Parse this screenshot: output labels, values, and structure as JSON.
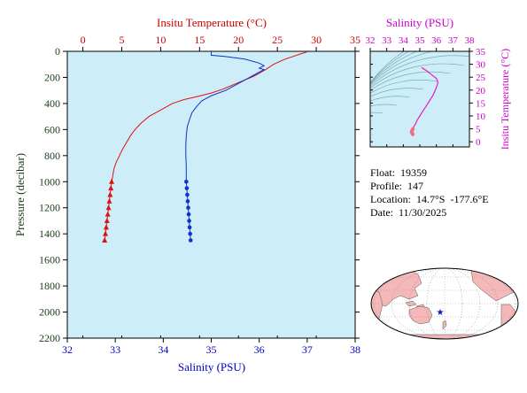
{
  "chart_data": [
    {
      "type": "line",
      "title": "",
      "top_axis_label": "Insitu Temperature (°C)",
      "bottom_axis_label": "Salinity (PSU)",
      "left_axis_label": "Pressure (decibar)",
      "top_axis_ticks": [
        "0",
        "5",
        "10",
        "15",
        "20",
        "25",
        "30",
        "35"
      ],
      "bottom_axis_ticks": [
        "32",
        "33",
        "34",
        "35",
        "36",
        "37",
        "38"
      ],
      "left_axis_ticks": [
        "0",
        "200",
        "400",
        "600",
        "800",
        "1000",
        "1200",
        "1400",
        "1600",
        "1800",
        "2000",
        "2200"
      ],
      "temperature_range": [
        -2,
        35
      ],
      "salinity_range": [
        32,
        38
      ],
      "pressure_range": [
        0,
        2200
      ],
      "colors": {
        "temperature": "#e01010",
        "salinity": "#1030d0",
        "background": "#cdeef8",
        "temp_axis": "#cc0000",
        "sal_axis": "#0000cc",
        "pressure_axis": "#1b3a1b"
      },
      "series": [
        {
          "x_quantity": "temperature",
          "points": [
            [
              28.8,
              5
            ],
            [
              28,
              20
            ],
            [
              26,
              60
            ],
            [
              24.5,
              100
            ],
            [
              23.5,
              140
            ],
            [
              22,
              190
            ],
            [
              20,
              240
            ],
            [
              18,
              290
            ],
            [
              16.5,
              320
            ],
            [
              14.5,
              350
            ],
            [
              13,
              370
            ],
            [
              11.5,
              400
            ],
            [
              10,
              450
            ],
            [
              8.5,
              500
            ],
            [
              7.5,
              550
            ],
            [
              6.7,
              600
            ],
            [
              6.1,
              650
            ],
            [
              5.6,
              700
            ],
            [
              5.1,
              750
            ],
            [
              4.7,
              800
            ],
            [
              4.3,
              850
            ],
            [
              4.0,
              900
            ],
            [
              3.7,
              1000
            ],
            [
              3.6,
              1050
            ],
            [
              3.5,
              1100
            ],
            [
              3.4,
              1150
            ],
            [
              3.3,
              1200
            ],
            [
              3.2,
              1250
            ],
            [
              3.1,
              1300
            ],
            [
              3.0,
              1350
            ],
            [
              2.9,
              1400
            ],
            [
              2.8,
              1450
            ]
          ],
          "markers": [
            [
              3.7,
              1000
            ],
            [
              3.6,
              1050
            ],
            [
              3.5,
              1100
            ],
            [
              3.4,
              1150
            ],
            [
              3.3,
              1200
            ],
            [
              3.2,
              1250
            ],
            [
              3.1,
              1300
            ],
            [
              3.0,
              1350
            ],
            [
              2.9,
              1400
            ],
            [
              2.8,
              1450
            ]
          ]
        },
        {
          "x_quantity": "salinity",
          "points": [
            [
              35.0,
              5
            ],
            [
              35.0,
              30
            ],
            [
              35.3,
              40
            ],
            [
              35.7,
              60
            ],
            [
              36.0,
              90
            ],
            [
              36.1,
              110
            ],
            [
              36.0,
              130
            ],
            [
              36.1,
              140
            ],
            [
              35.9,
              180
            ],
            [
              35.7,
              220
            ],
            [
              35.5,
              260
            ],
            [
              35.3,
              300
            ],
            [
              35.0,
              340
            ],
            [
              34.8,
              380
            ],
            [
              34.7,
              420
            ],
            [
              34.6,
              470
            ],
            [
              34.55,
              520
            ],
            [
              34.5,
              580
            ],
            [
              34.48,
              650
            ],
            [
              34.47,
              720
            ],
            [
              34.47,
              800
            ],
            [
              34.48,
              880
            ],
            [
              34.48,
              960
            ],
            [
              34.48,
              1000
            ],
            [
              34.49,
              1050
            ],
            [
              34.5,
              1100
            ],
            [
              34.51,
              1150
            ],
            [
              34.52,
              1200
            ],
            [
              34.53,
              1250
            ],
            [
              34.54,
              1300
            ],
            [
              34.55,
              1350
            ],
            [
              34.56,
              1400
            ],
            [
              34.57,
              1450
            ]
          ],
          "markers": [
            [
              34.48,
              1000
            ],
            [
              34.49,
              1050
            ],
            [
              34.5,
              1100
            ],
            [
              34.51,
              1150
            ],
            [
              34.52,
              1200
            ],
            [
              34.53,
              1250
            ],
            [
              34.54,
              1300
            ],
            [
              34.55,
              1350
            ],
            [
              34.56,
              1400
            ],
            [
              34.57,
              1450
            ]
          ]
        }
      ]
    },
    {
      "type": "scatter",
      "title": "",
      "top_axis_label": "Salinity (PSU)",
      "right_axis_label": "Insitu Temperature (°C)",
      "top_axis_ticks": [
        "32",
        "33",
        "34",
        "35",
        "36",
        "37",
        "38"
      ],
      "right_axis_ticks": [
        "0",
        "5",
        "10",
        "15",
        "20",
        "25",
        "30",
        "35"
      ],
      "salinity_range": [
        32,
        38
      ],
      "temperature_range": [
        -2,
        35
      ],
      "colors": {
        "trace": "#e020c0",
        "axis": "#cc00cc",
        "contour": "#6aa0aa",
        "background": "#cdeef8"
      },
      "ts_points": [
        [
          35.1,
          28.8
        ],
        [
          35.4,
          27.5
        ],
        [
          35.7,
          26.0
        ],
        [
          36.0,
          24.5
        ],
        [
          36.1,
          23.0
        ],
        [
          36.0,
          21.0
        ],
        [
          35.9,
          19.5
        ],
        [
          35.8,
          18.0
        ],
        [
          35.6,
          16.0
        ],
        [
          35.4,
          14.0
        ],
        [
          35.2,
          12.0
        ],
        [
          35.0,
          10.0
        ],
        [
          34.85,
          8.5
        ],
        [
          34.75,
          7.0
        ],
        [
          34.65,
          6.0
        ],
        [
          34.58,
          5.0
        ],
        [
          34.52,
          4.3
        ],
        [
          34.5,
          3.8
        ],
        [
          34.52,
          3.5
        ],
        [
          34.55,
          3.2
        ],
        [
          34.57,
          2.9
        ]
      ]
    }
  ],
  "info": {
    "float": "Float:  19359",
    "profile": "Profile:  147",
    "location": "Location:  14.7°S  -177.6°E",
    "date": "Date:  11/30/2025"
  },
  "map": {
    "land_color": "#f4b8b8",
    "ocean_color": "#ffffff",
    "marker_color": "#1010cc",
    "marker_icon": "star-icon"
  }
}
